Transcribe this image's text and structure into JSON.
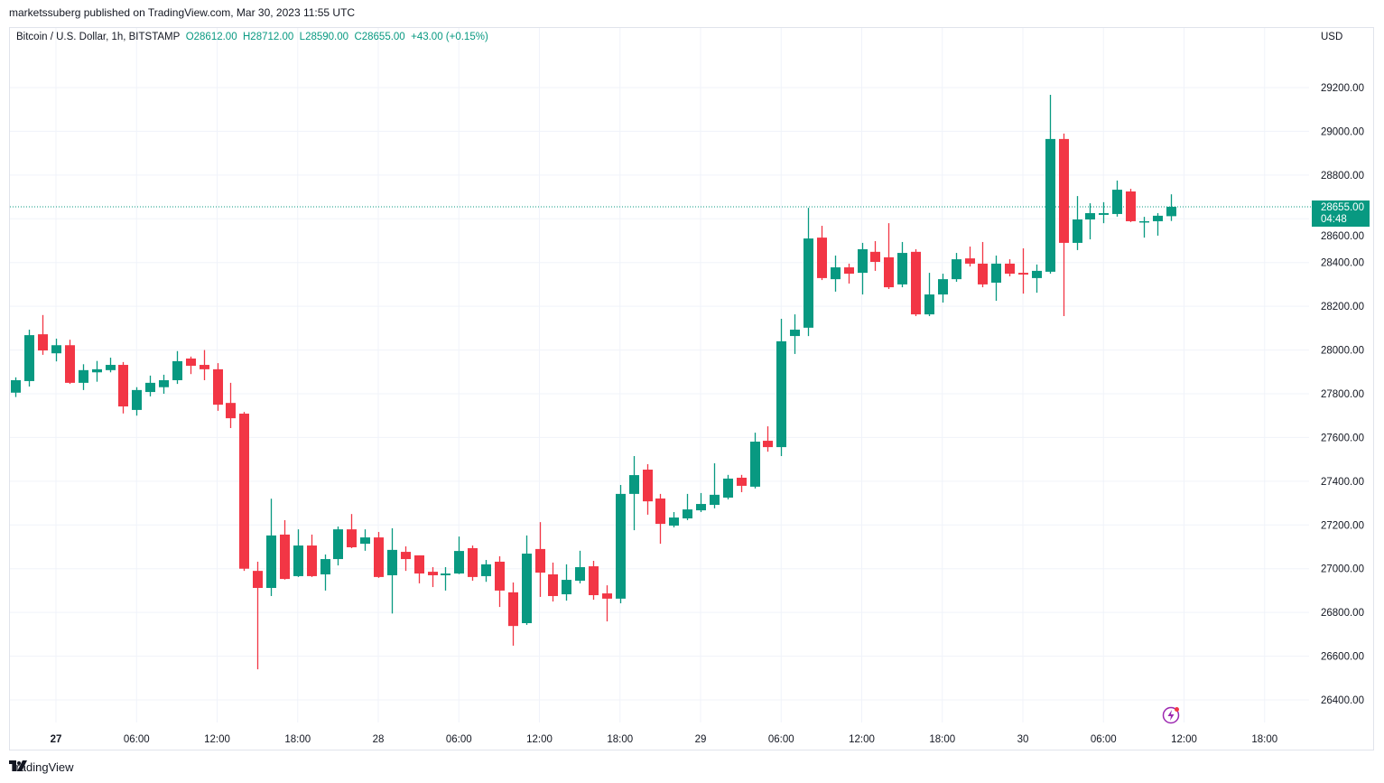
{
  "header": {
    "published": "marketssuberg published on TradingView.com, Mar 30, 2023 11:55 UTC"
  },
  "legend": {
    "symbol": "Bitcoin / U.S. Dollar, 1h, BITSTAMP",
    "open": "O28612.00",
    "high": "H28712.00",
    "low": "L28590.00",
    "close": "C28655.00",
    "change": "+43.00 (+0.15%)"
  },
  "currency": "USD",
  "last_price": {
    "price": "28655.00",
    "countdown": "04:48"
  },
  "footer": {
    "logo_text": "TradingView"
  },
  "colors": {
    "up": "#089981",
    "down": "#F23645",
    "grid": "#f0f3fa"
  },
  "chart_data": {
    "type": "candlestick",
    "interval": "1h",
    "first_candle_hours_from_27": -3,
    "ylim": [
      26300,
      29400
    ],
    "y_ticks": [
      26400,
      26600,
      26800,
      27000,
      27200,
      27400,
      27600,
      27800,
      28000,
      28200,
      28400,
      28600,
      28800,
      29000,
      29200
    ],
    "y_tick_labels": [
      "26400.00",
      "26600.00",
      "26800.00",
      "27000.00",
      "27200.00",
      "27400.00",
      "27600.00",
      "27800.00",
      "28000.00",
      "28200.00",
      "28400.00",
      "28600.00",
      "28800.00",
      "29000.00",
      "29200.00"
    ],
    "x_ticks": [
      {
        "label": "27",
        "h": 0,
        "bold": true
      },
      {
        "label": "06:00",
        "h": 6
      },
      {
        "label": "12:00",
        "h": 12
      },
      {
        "label": "18:00",
        "h": 18
      },
      {
        "label": "28",
        "h": 24
      },
      {
        "label": "06:00",
        "h": 30
      },
      {
        "label": "12:00",
        "h": 36
      },
      {
        "label": "18:00",
        "h": 42
      },
      {
        "label": "29",
        "h": 48
      },
      {
        "label": "06:00",
        "h": 54
      },
      {
        "label": "12:00",
        "h": 60
      },
      {
        "label": "18:00",
        "h": 66
      },
      {
        "label": "30",
        "h": 72
      },
      {
        "label": "06:00",
        "h": 78
      },
      {
        "label": "12:00",
        "h": 84
      },
      {
        "label": "18:00",
        "h": 90
      }
    ],
    "last_price": 28655,
    "ohlc": [
      [
        27805,
        27875,
        27785,
        27862
      ],
      [
        27858,
        28093,
        27833,
        28068
      ],
      [
        28072,
        28160,
        27978,
        27998
      ],
      [
        27985,
        28052,
        27948,
        28022
      ],
      [
        28022,
        28047,
        27845,
        27850
      ],
      [
        27850,
        27935,
        27817,
        27908
      ],
      [
        27898,
        27950,
        27855,
        27912
      ],
      [
        27908,
        27965,
        27898,
        27932
      ],
      [
        27932,
        27945,
        27710,
        27742
      ],
      [
        27726,
        27830,
        27700,
        27817
      ],
      [
        27808,
        27883,
        27788,
        27850
      ],
      [
        27830,
        27887,
        27800,
        27862
      ],
      [
        27862,
        27995,
        27845,
        27949
      ],
      [
        27961,
        27970,
        27890,
        27928
      ],
      [
        27932,
        28000,
        27862,
        27912
      ],
      [
        27912,
        27940,
        27722,
        27750
      ],
      [
        27758,
        27850,
        27643,
        27688
      ],
      [
        27709,
        27717,
        26990,
        27000
      ],
      [
        26990,
        27032,
        26540,
        26912
      ],
      [
        26912,
        27320,
        26875,
        27152
      ],
      [
        27156,
        27222,
        26950,
        26953
      ],
      [
        26966,
        27180,
        26962,
        27106
      ],
      [
        27106,
        27156,
        26962,
        26966
      ],
      [
        26974,
        27065,
        26900,
        27044
      ],
      [
        27044,
        27193,
        27015,
        27180
      ],
      [
        27180,
        27250,
        27094,
        27098
      ],
      [
        27114,
        27180,
        27082,
        27143
      ],
      [
        27143,
        27168,
        26958,
        26962
      ],
      [
        26970,
        27185,
        26795,
        27086
      ],
      [
        27077,
        27102,
        26990,
        27044
      ],
      [
        27061,
        27061,
        26933,
        26978
      ],
      [
        26986,
        27007,
        26916,
        26970
      ],
      [
        26970,
        27007,
        26900,
        26978
      ],
      [
        26978,
        27147,
        26975,
        27081
      ],
      [
        27094,
        27106,
        26945,
        26962
      ],
      [
        26966,
        27040,
        26940,
        27020
      ],
      [
        27032,
        27057,
        26825,
        26900
      ],
      [
        26892,
        26937,
        26648,
        26738
      ],
      [
        26751,
        27152,
        26743,
        27069
      ],
      [
        27090,
        27213,
        26871,
        26982
      ],
      [
        26974,
        27028,
        26850,
        26875
      ],
      [
        26883,
        27020,
        26854,
        26949
      ],
      [
        26945,
        27082,
        26933,
        27007
      ],
      [
        27011,
        27036,
        26858,
        26879
      ],
      [
        26887,
        26924,
        26759,
        26863
      ],
      [
        26863,
        27383,
        26842,
        27342
      ],
      [
        27342,
        27515,
        27176,
        27428
      ],
      [
        27453,
        27478,
        27247,
        27308
      ],
      [
        27321,
        27342,
        27114,
        27205
      ],
      [
        27197,
        27259,
        27189,
        27234
      ],
      [
        27230,
        27342,
        27222,
        27271
      ],
      [
        27267,
        27346,
        27259,
        27296
      ],
      [
        27292,
        27482,
        27276,
        27338
      ],
      [
        27325,
        27429,
        27317,
        27412
      ],
      [
        27416,
        27429,
        27350,
        27379
      ],
      [
        27375,
        27622,
        27367,
        27581
      ],
      [
        27585,
        27651,
        27535,
        27556
      ],
      [
        27556,
        28143,
        27515,
        28040
      ],
      [
        28064,
        28163,
        27982,
        28093
      ],
      [
        28102,
        28650,
        28064,
        28510
      ],
      [
        28514,
        28568,
        28320,
        28329
      ],
      [
        28324,
        28432,
        28267,
        28378
      ],
      [
        28378,
        28395,
        28304,
        28349
      ],
      [
        28353,
        28490,
        28254,
        28461
      ],
      [
        28449,
        28498,
        28362,
        28403
      ],
      [
        28424,
        28580,
        28279,
        28287
      ],
      [
        28300,
        28494,
        28287,
        28444
      ],
      [
        28449,
        28461,
        28155,
        28163
      ],
      [
        28163,
        28353,
        28155,
        28254
      ],
      [
        28254,
        28349,
        28217,
        28324
      ],
      [
        28324,
        28444,
        28312,
        28415
      ],
      [
        28419,
        28473,
        28382,
        28395
      ],
      [
        28395,
        28494,
        28287,
        28300
      ],
      [
        28308,
        28432,
        28225,
        28395
      ],
      [
        28395,
        28415,
        28337,
        28349
      ],
      [
        28353,
        28465,
        28258,
        28345
      ],
      [
        28329,
        28391,
        28262,
        28362
      ],
      [
        28358,
        29167,
        28349,
        28965
      ],
      [
        28965,
        28990,
        28155,
        28490
      ],
      [
        28490,
        28704,
        28457,
        28597
      ],
      [
        28597,
        28671,
        28506,
        28626
      ],
      [
        28618,
        28676,
        28580,
        28626
      ],
      [
        28622,
        28775,
        28610,
        28733
      ],
      [
        28725,
        28737,
        28585,
        28589
      ],
      [
        28585,
        28609,
        28514,
        28589
      ],
      [
        28589,
        28626,
        28523,
        28614
      ],
      [
        28612,
        28712,
        28590,
        28655
      ]
    ]
  }
}
